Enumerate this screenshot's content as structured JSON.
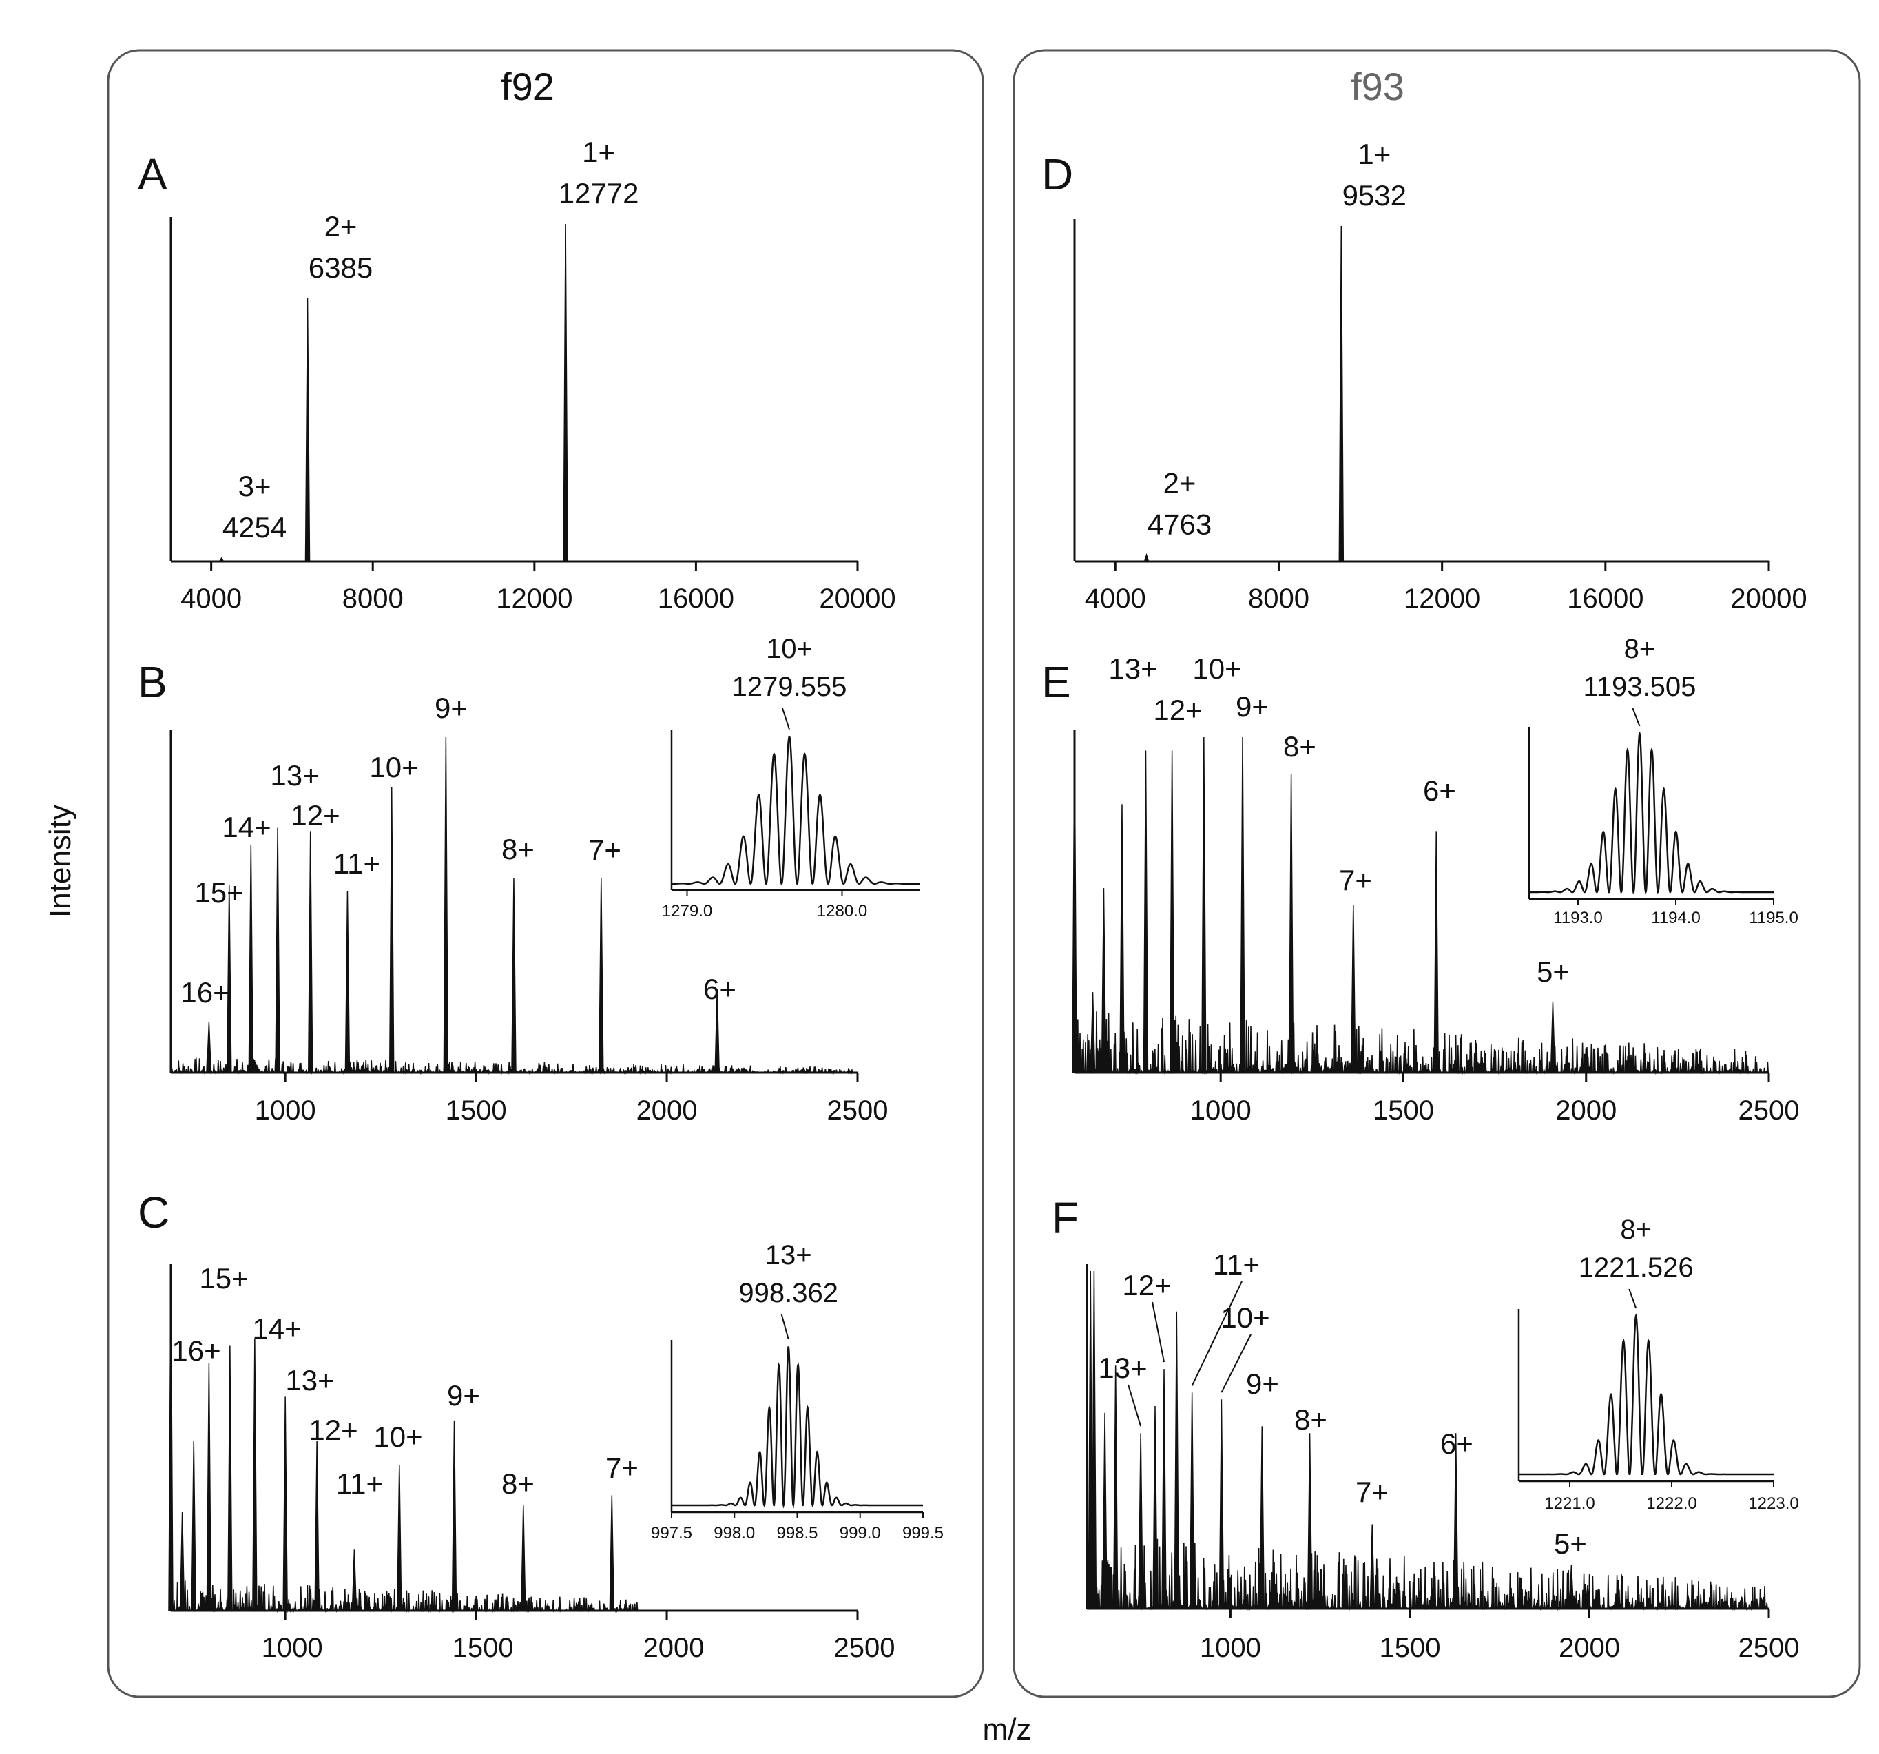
{
  "figure": {
    "groups": [
      {
        "id": "f92",
        "title": "f92"
      },
      {
        "id": "f93",
        "title": "f93"
      }
    ],
    "ylabel": "Intensity",
    "xlabel": "m/z"
  },
  "chart_data": [
    {
      "panel": "A",
      "group": "f92",
      "type": "line",
      "letter": "A",
      "xlim": [
        3000,
        20000
      ],
      "ylim": [
        0,
        100
      ],
      "ticks": [
        4000,
        8000,
        12000,
        16000,
        20000
      ],
      "tick_labels": [
        "4000",
        "8000",
        "12000",
        "16000",
        "20000"
      ],
      "peaks": [
        [
          4254,
          1
        ],
        [
          6385,
          78
        ],
        [
          12772,
          100
        ]
      ],
      "noise": 0,
      "annotations": [
        {
          "charge": "3+",
          "mz": "4254",
          "x": 4254,
          "y": 1
        },
        {
          "charge": "2+",
          "mz": "6385",
          "x": 6385,
          "y": 78
        },
        {
          "charge": "1+",
          "mz": "12772",
          "x": 12772,
          "y": 100
        }
      ]
    },
    {
      "panel": "B",
      "group": "f92",
      "type": "line",
      "letter": "B",
      "xlim": [
        700,
        2500
      ],
      "ylim": [
        0,
        100
      ],
      "ticks": [
        1000,
        1500,
        2000,
        2500
      ],
      "tick_labels": [
        "1000",
        "1500",
        "2000",
        "2500"
      ],
      "peaks": [
        [
          800,
          15
        ],
        [
          853,
          56
        ],
        [
          910,
          68
        ],
        [
          980,
          73
        ],
        [
          1066,
          72
        ],
        [
          1163,
          54
        ],
        [
          1279,
          85
        ],
        [
          1421,
          100
        ],
        [
          1599,
          58
        ],
        [
          1828,
          58
        ],
        [
          2132,
          25
        ]
      ],
      "noise": 3,
      "annotations": [
        {
          "charge": "16+",
          "x": 800,
          "y": 15
        },
        {
          "charge": "15+",
          "x": 853,
          "y": 56
        },
        {
          "charge": "14+",
          "x": 910,
          "y": 68
        },
        {
          "charge": "13+",
          "x": 980,
          "y": 73
        },
        {
          "charge": "12+",
          "x": 1066,
          "y": 72
        },
        {
          "charge": "11+",
          "x": 1163,
          "y": 54
        },
        {
          "charge": "10+",
          "x": 1279,
          "y": 85
        },
        {
          "charge": "9+",
          "x": 1421,
          "y": 100
        },
        {
          "charge": "8+",
          "x": 1599,
          "y": 58
        },
        {
          "charge": "7+",
          "x": 1828,
          "y": 58
        },
        {
          "charge": "6+",
          "x": 2132,
          "y": 25
        }
      ],
      "inset": {
        "type": "line",
        "charge": "10+",
        "mz": "1279.555",
        "xlim": [
          1278.9,
          1280.5
        ],
        "ylim": [
          0,
          100
        ],
        "ticks": [
          1279.0,
          1280.0
        ],
        "tick_labels": [
          "1279.0",
          "1280.0"
        ],
        "center": 1279.66,
        "spacing": 0.1,
        "width": 0.28,
        "label_x": 1279.66
      }
    },
    {
      "panel": "C",
      "group": "f92",
      "type": "line",
      "letter": "C",
      "xlim": [
        700,
        2500
      ],
      "ylim": [
        0,
        100
      ],
      "ticks": [
        1000,
        1500,
        2000,
        2500
      ],
      "tick_labels": [
        "1000",
        "1500",
        "2000",
        "2500"
      ],
      "peaks": [
        [
          700,
          100
        ],
        [
          730,
          29
        ],
        [
          760,
          50
        ],
        [
          800,
          73
        ],
        [
          855,
          78
        ],
        [
          920,
          80
        ],
        [
          1000,
          63
        ],
        [
          1083,
          50
        ],
        [
          1181,
          18
        ],
        [
          1299,
          43
        ],
        [
          1443,
          56
        ],
        [
          1624,
          31
        ],
        [
          1856,
          34
        ]
      ],
      "noise": 6,
      "noise_end": 1930,
      "annotations": [
        {
          "charge": "16+",
          "x": 800,
          "y": 73
        },
        {
          "charge": "15+",
          "x": 855,
          "y": 78
        },
        {
          "charge": "14+",
          "x": 920,
          "y": 80
        },
        {
          "charge": "13+",
          "x": 1000,
          "y": 63
        },
        {
          "charge": "12+",
          "x": 1083,
          "y": 50
        },
        {
          "charge": "11+",
          "x": 1181,
          "y": 18
        },
        {
          "charge": "10+",
          "x": 1299,
          "y": 43
        },
        {
          "charge": "9+",
          "x": 1443,
          "y": 56
        },
        {
          "charge": "8+",
          "x": 1624,
          "y": 31
        },
        {
          "charge": "7+",
          "x": 1856,
          "y": 34
        }
      ],
      "inset": {
        "type": "line",
        "charge": "13+",
        "mz": "998.362",
        "xlim": [
          997.5,
          999.5
        ],
        "ylim": [
          0,
          100
        ],
        "ticks": [
          997.5,
          998.0,
          998.5,
          999.0,
          999.5
        ],
        "tick_labels": [
          "997.5",
          "998.0",
          "998.5",
          "999.0",
          "999.5"
        ],
        "center": 998.43,
        "spacing": 0.077,
        "width": 0.22,
        "label_x": 998.43
      }
    },
    {
      "panel": "D",
      "group": "f93",
      "type": "line",
      "letter": "D",
      "xlim": [
        3000,
        20000
      ],
      "ylim": [
        0,
        100
      ],
      "ticks": [
        4000,
        8000,
        12000,
        16000,
        20000
      ],
      "tick_labels": [
        "4000",
        "8000",
        "12000",
        "16000",
        "20000"
      ],
      "peaks": [
        [
          4763,
          2
        ],
        [
          9532,
          100
        ]
      ],
      "noise": 0,
      "annotations": [
        {
          "charge": "2+",
          "mz": "4763",
          "x": 4763,
          "y": 2
        },
        {
          "charge": "1+",
          "mz": "9532",
          "x": 9532,
          "y": 100
        }
      ]
    },
    {
      "panel": "E",
      "group": "f93",
      "type": "line",
      "letter": "E",
      "xlim": [
        600,
        2500
      ],
      "ylim": [
        0,
        100
      ],
      "ticks": [
        1000,
        1500,
        2000,
        2500
      ],
      "tick_labels": [
        "1000",
        "1500",
        "2000",
        "2500"
      ],
      "peaks": [
        [
          600,
          100
        ],
        [
          650,
          24
        ],
        [
          680,
          55
        ],
        [
          730,
          80
        ],
        [
          795,
          96
        ],
        [
          867,
          96
        ],
        [
          954,
          100
        ],
        [
          1060,
          100
        ],
        [
          1193,
          89
        ],
        [
          1363,
          50
        ],
        [
          1590,
          72
        ],
        [
          1909,
          21
        ]
      ],
      "noise": 12,
      "annotations": [
        {
          "charge": "13+",
          "x": 730,
          "y": 80
        },
        {
          "charge": "12+",
          "x": 867,
          "y": 96
        },
        {
          "charge": "10+",
          "x": 954,
          "y": 100
        },
        {
          "charge": "9+",
          "x": 1060,
          "y": 100
        },
        {
          "charge": "8+",
          "x": 1193,
          "y": 89
        },
        {
          "charge": "7+",
          "x": 1363,
          "y": 50
        },
        {
          "charge": "6+",
          "x": 1590,
          "y": 72
        },
        {
          "charge": "5+",
          "x": 1909,
          "y": 21
        }
      ],
      "inset": {
        "type": "line",
        "charge": "8+",
        "mz": "1193.505",
        "xlim": [
          1192.5,
          1195.0
        ],
        "ylim": [
          0,
          100
        ],
        "ticks": [
          1193.0,
          1194.0,
          1195.0
        ],
        "tick_labels": [
          "1193.0",
          "1194.0",
          "1195.0"
        ],
        "center": 1193.63,
        "spacing": 0.125,
        "width": 0.38,
        "label_x": 1193.63
      }
    },
    {
      "panel": "F",
      "group": "f93",
      "type": "line",
      "letter": "F",
      "xlim": [
        600,
        2500
      ],
      "ylim": [
        0,
        100
      ],
      "ticks": [
        1000,
        1500,
        2000,
        2500
      ],
      "tick_labels": [
        "1000",
        "1500",
        "2000",
        "2500"
      ],
      "peaks": [
        [
          610,
          100
        ],
        [
          620,
          100
        ],
        [
          650,
          58
        ],
        [
          680,
          72
        ],
        [
          750,
          52
        ],
        [
          790,
          60
        ],
        [
          815,
          71
        ],
        [
          850,
          88
        ],
        [
          893,
          64
        ],
        [
          975,
          62
        ],
        [
          1088,
          54
        ],
        [
          1221,
          52
        ],
        [
          1395,
          25
        ],
        [
          1628,
          52
        ],
        [
          1950,
          13
        ],
        [
          1995,
          7
        ],
        [
          2275,
          4
        ]
      ],
      "noise": 14,
      "annotations": [
        {
          "charge": "13+",
          "x": 750,
          "y": 52
        },
        {
          "charge": "12+",
          "x": 815,
          "y": 71
        },
        {
          "charge": "11+",
          "x": 893,
          "y": 64
        },
        {
          "charge": "10+",
          "x": 975,
          "y": 62
        },
        {
          "charge": "9+",
          "x": 1088,
          "y": 54
        },
        {
          "charge": "8+",
          "x": 1221,
          "y": 52
        },
        {
          "charge": "7+",
          "x": 1395,
          "y": 25
        },
        {
          "charge": "6+",
          "x": 1628,
          "y": 52
        },
        {
          "charge": "5+",
          "x": 1950,
          "y": 13
        }
      ],
      "inset": {
        "type": "line",
        "charge": "8+",
        "mz": "1221.526",
        "xlim": [
          1220.5,
          1223.0
        ],
        "ylim": [
          0,
          100
        ],
        "ticks": [
          1221.0,
          1222.0,
          1223.0
        ],
        "tick_labels": [
          "1221.0",
          "1222.0",
          "1223.0"
        ],
        "center": 1221.65,
        "spacing": 0.125,
        "width": 0.3,
        "label_x": 1221.65
      }
    }
  ]
}
